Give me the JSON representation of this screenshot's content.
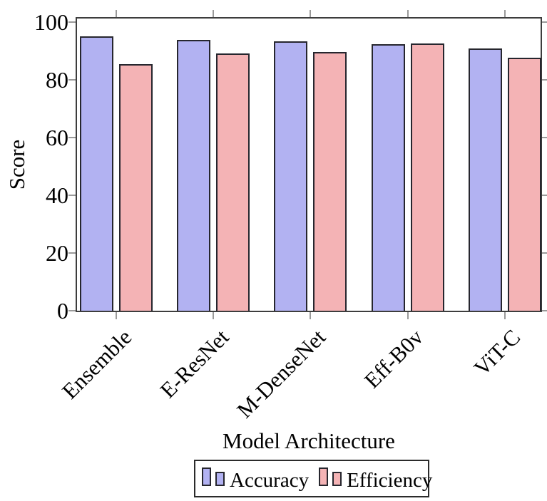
{
  "chart_data": {
    "type": "bar",
    "title": "",
    "categories": [
      "Ensemble",
      "E-ResNet",
      "M-DenseNet",
      "Eff-B0v",
      "ViT-C"
    ],
    "series": [
      {
        "name": "Accuracy",
        "color": "#b2b2f2",
        "values": [
          95.0,
          93.8,
          93.3,
          92.2,
          90.8
        ]
      },
      {
        "name": "Efficiency",
        "color": "#f4b3b5",
        "values": [
          85.4,
          89.0,
          89.7,
          92.5,
          87.7
        ]
      }
    ],
    "xlabel": "Model Architecture",
    "ylabel": "Score",
    "ylim": [
      0,
      100
    ],
    "yticks": [
      0,
      20,
      40,
      60,
      80,
      100
    ],
    "grid": false,
    "legend_position": "below",
    "bar_edge_color": "#26262e",
    "axis_color": "#3d3d3d",
    "tick_color": "#9a9a9a"
  }
}
